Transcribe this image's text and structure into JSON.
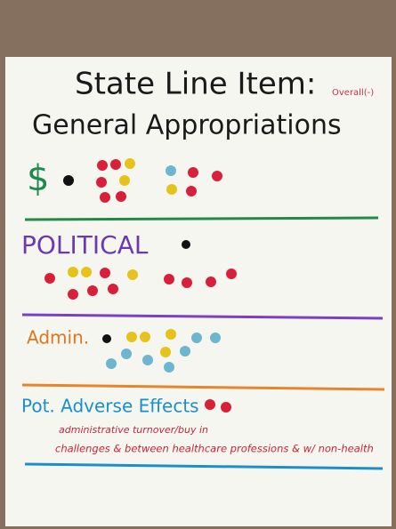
{
  "poster": {
    "title_line1": "State Line Item:",
    "title_note": "Overall(-)",
    "title_line2": "General Appropriations",
    "sections": [
      {
        "label": "$"
      },
      {
        "label": "POLITICAL"
      },
      {
        "label": "Admin."
      },
      {
        "label": "Pot. Adverse Effects",
        "notes": [
          "administrative turnover/buy in",
          "challenges & between healthcare professions & w/ non-health"
        ]
      }
    ]
  }
}
